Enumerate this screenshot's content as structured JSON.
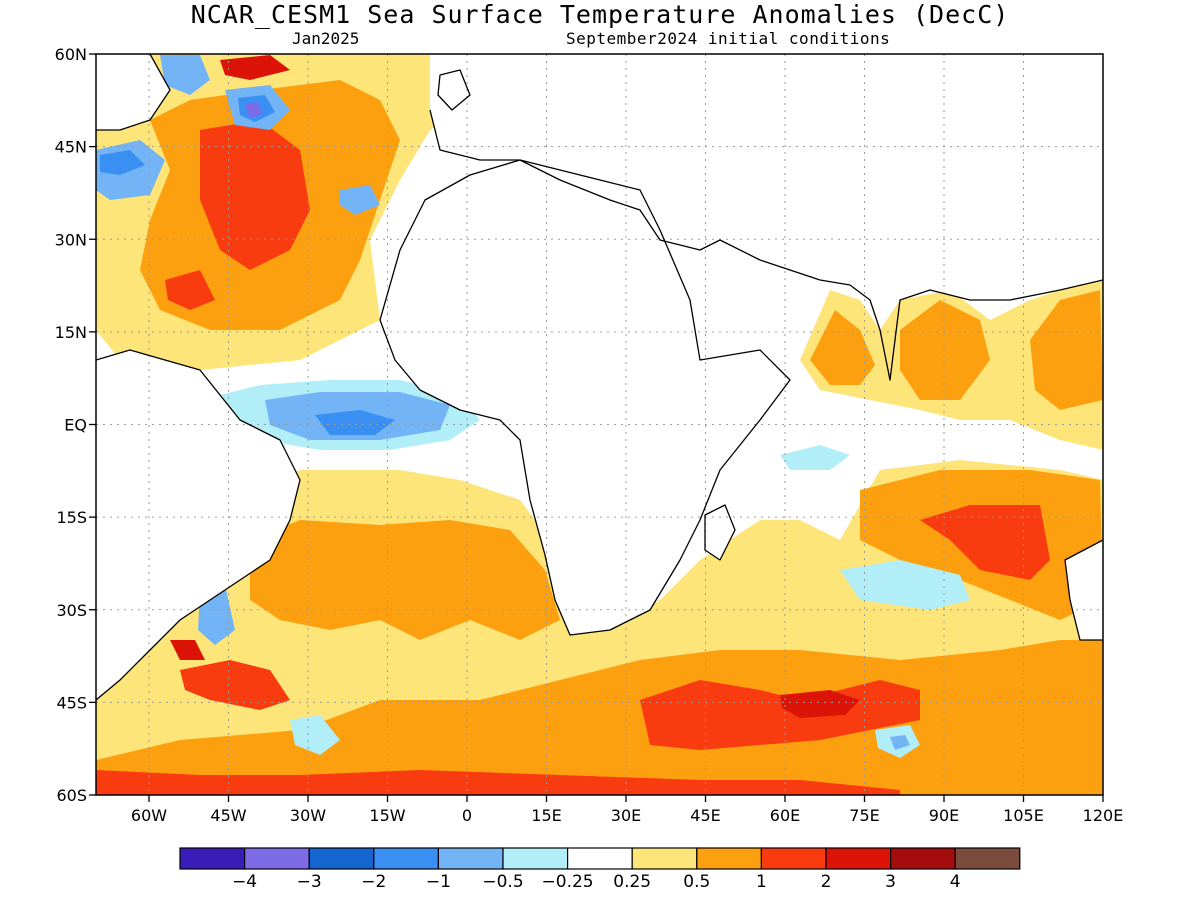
{
  "header": {
    "title": "NCAR_CESM1 Sea Surface Temperature Anomalies (DecC)",
    "valid_month": "Jan2025",
    "init_conditions": "September2024 initial conditions"
  },
  "map": {
    "extent": {
      "lon_min": -70,
      "lon_max": 120,
      "lat_min": -60,
      "lat_max": 60
    },
    "lat_ticks": [
      {
        "value": 60,
        "label": "60N"
      },
      {
        "value": 45,
        "label": "45N"
      },
      {
        "value": 30,
        "label": "30N"
      },
      {
        "value": 15,
        "label": "15N"
      },
      {
        "value": 0,
        "label": "EQ"
      },
      {
        "value": -15,
        "label": "15S"
      },
      {
        "value": -30,
        "label": "30S"
      },
      {
        "value": -45,
        "label": "45S"
      },
      {
        "value": -60,
        "label": "60S"
      }
    ],
    "lon_ticks": [
      {
        "value": -60,
        "label": "60W"
      },
      {
        "value": -45,
        "label": "45W"
      },
      {
        "value": -30,
        "label": "30W"
      },
      {
        "value": -15,
        "label": "15W"
      },
      {
        "value": 0,
        "label": "0"
      },
      {
        "value": 15,
        "label": "15E"
      },
      {
        "value": 30,
        "label": "30E"
      },
      {
        "value": 45,
        "label": "45E"
      },
      {
        "value": 60,
        "label": "60E"
      },
      {
        "value": 75,
        "label": "75E"
      },
      {
        "value": 90,
        "label": "90E"
      },
      {
        "value": 105,
        "label": "105E"
      },
      {
        "value": 120,
        "label": "120E"
      }
    ],
    "grid": true
  },
  "colorbar": {
    "colors": [
      "#3a1db8",
      "#7e6be8",
      "#1565d0",
      "#3a8ff2",
      "#72b4f5",
      "#b2eef7",
      "#ffffff",
      "#fde57a",
      "#fca00f",
      "#f93c10",
      "#dc1407",
      "#a50c0c",
      "#7a4a3c"
    ],
    "labels": [
      "−4",
      "−3",
      "−2",
      "−1",
      "−0.5",
      "−0.25",
      "0.25",
      "0.5",
      "1",
      "2",
      "3",
      "4"
    ]
  }
}
